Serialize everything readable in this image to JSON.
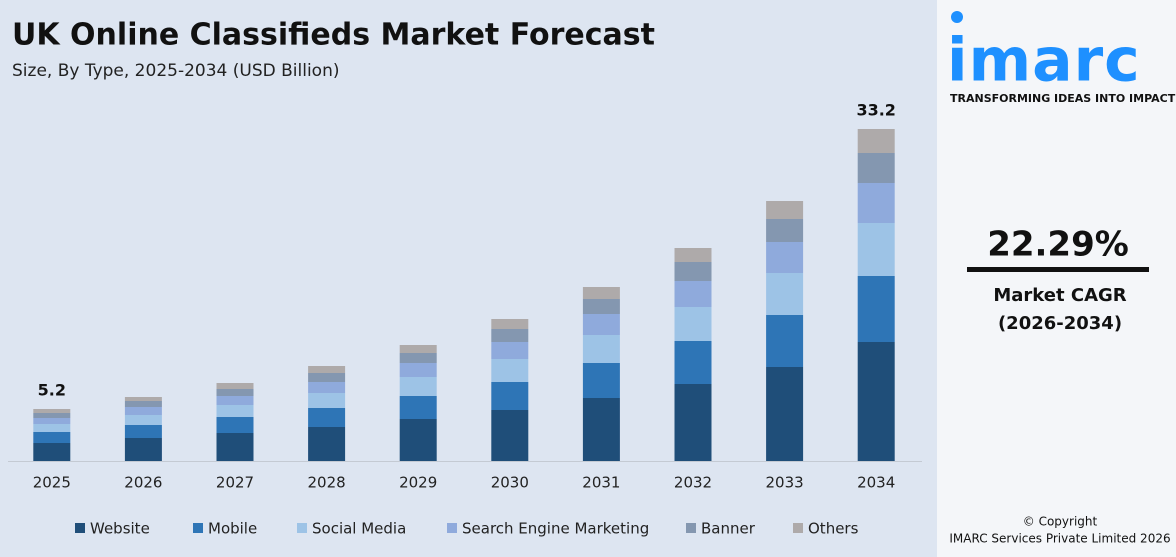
{
  "chart_data": {
    "type": "stacked-bar",
    "title": "UK Online Classifieds Market Forecast",
    "subtitle": "Size, By Type, 2025-2034 (USD Billion)",
    "categories": [
      "2025",
      "2026",
      "2027",
      "2028",
      "2029",
      "2030",
      "2031",
      "2032",
      "2033",
      "2034"
    ],
    "series": [
      {
        "name": "Website",
        "color": "#1f4e79",
        "values": [
          1.8,
          2.3,
          2.8,
          3.4,
          4.2,
          5.1,
          6.3,
          7.7,
          9.4,
          11.9
        ]
      },
      {
        "name": "Mobile",
        "color": "#2e75b6",
        "values": [
          1.1,
          1.3,
          1.6,
          1.9,
          2.3,
          2.8,
          3.5,
          4.3,
          5.2,
          6.6
        ]
      },
      {
        "name": "Social Media",
        "color": "#9dc3e6",
        "values": [
          0.8,
          1.0,
          1.2,
          1.5,
          1.9,
          2.3,
          2.8,
          3.4,
          4.2,
          5.3
        ]
      },
      {
        "name": "Search Engine Marketing",
        "color": "#8faadc",
        "values": [
          0.6,
          0.8,
          0.9,
          1.1,
          1.4,
          1.7,
          2.1,
          2.6,
          3.1,
          4.0
        ]
      },
      {
        "name": "Banner",
        "color": "#8497b0",
        "values": [
          0.5,
          0.6,
          0.7,
          0.9,
          1.0,
          1.3,
          1.5,
          1.9,
          2.3,
          3.0
        ]
      },
      {
        "name": "Others",
        "color": "#aeaaaa",
        "values": [
          0.4,
          0.4,
          0.6,
          0.7,
          0.8,
          1.0,
          1.2,
          1.4,
          1.8,
          2.4
        ]
      }
    ],
    "totals": [
      5.2,
      null,
      null,
      null,
      null,
      null,
      null,
      null,
      null,
      33.2
    ],
    "legend": "bottom"
  },
  "sidebar": {
    "logo": "imarc",
    "tagline": "TRANSFORMING IDEAS INTO IMPACT",
    "cagr": "22.29%",
    "cagr_label": "Market CAGR",
    "cagr_period": "(2026-2034)",
    "copyright": "© Copyright",
    "company": "IMARC Services Private Limited 2026"
  }
}
